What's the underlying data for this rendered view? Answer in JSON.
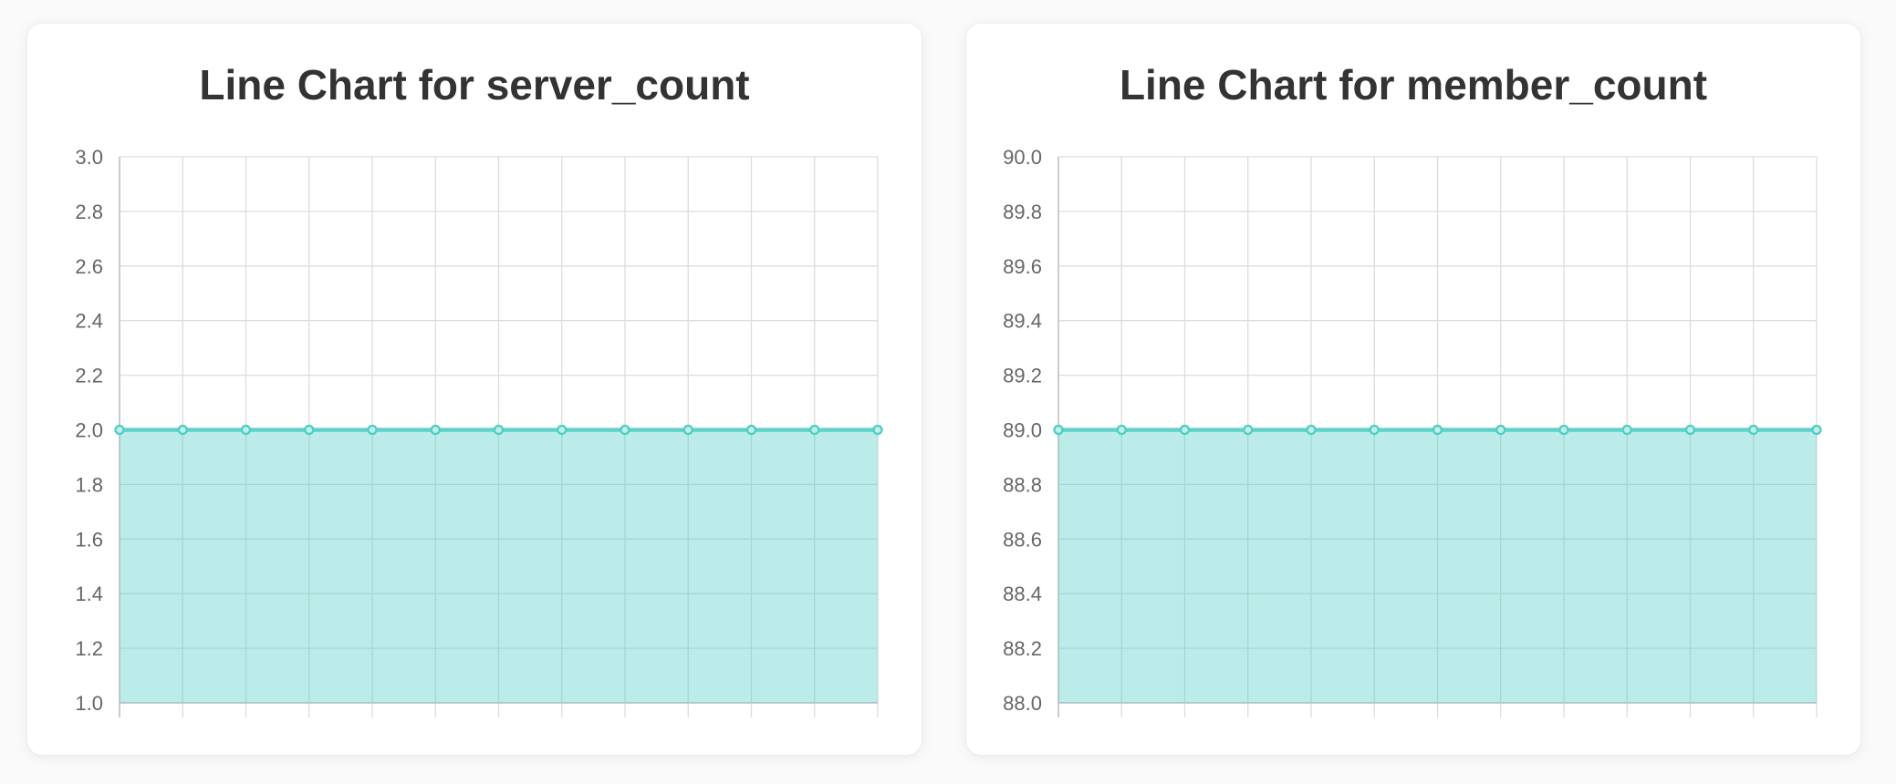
{
  "colors": {
    "line": "#4ecdc4",
    "fill": "#bbf0e8",
    "grid": "#dddddd",
    "axis": "#cccccc",
    "tick_text": "#666666",
    "title": "#333333"
  },
  "chart_data": [
    {
      "type": "area",
      "title": "Line Chart for server_count",
      "xlabel": "",
      "ylabel": "",
      "x": [
        "",
        "",
        "",
        "",
        "",
        "",
        "",
        "",
        "",
        "",
        "",
        "",
        ""
      ],
      "series": [
        {
          "values": [
            2,
            2,
            2,
            2,
            2,
            2,
            2,
            2,
            2,
            2,
            2,
            2,
            2
          ]
        }
      ],
      "ylim": [
        1.0,
        3.0
      ],
      "y_ticks": [
        "3.0",
        "2.8",
        "2.6",
        "2.4",
        "2.2",
        "2.0",
        "1.8",
        "1.6",
        "1.4",
        "1.2",
        "1.0"
      ],
      "grid": true,
      "fill": true
    },
    {
      "type": "area",
      "title": "Line Chart for member_count",
      "xlabel": "",
      "ylabel": "",
      "x": [
        "",
        "",
        "",
        "",
        "",
        "",
        "",
        "",
        "",
        "",
        "",
        "",
        ""
      ],
      "series": [
        {
          "values": [
            89,
            89,
            89,
            89,
            89,
            89,
            89,
            89,
            89,
            89,
            89,
            89,
            89
          ]
        }
      ],
      "ylim": [
        88.0,
        90.0
      ],
      "y_ticks": [
        "90.0",
        "89.8",
        "89.6",
        "89.4",
        "89.2",
        "89.0",
        "88.8",
        "88.6",
        "88.4",
        "88.2",
        "88.0"
      ],
      "grid": true,
      "fill": true
    }
  ]
}
